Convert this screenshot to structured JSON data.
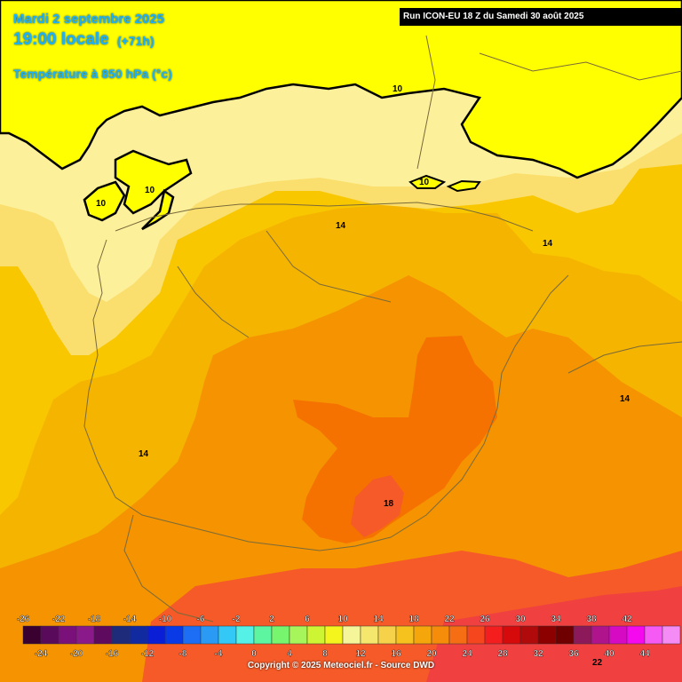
{
  "header": {
    "date": "Mardi 2 septembre 2025",
    "time": "19:00 locale",
    "lead": "(+71h)",
    "parameter": "Température à 850 hPa (°c)",
    "run": "Run ICON-EU 18 Z du Samedi 30 août 2025"
  },
  "footer": {
    "copyright": "Copyright © 2025 Meteociel.fr - Source DWD"
  },
  "contour_labels": [
    "10",
    "10",
    "10",
    "10",
    "14",
    "14",
    "14",
    "14",
    "18",
    "22"
  ],
  "legend": {
    "top_ticks": [
      "-26",
      "-22",
      "-18",
      "-14",
      "-10",
      "-6",
      "-2",
      "2",
      "6",
      "10",
      "14",
      "18",
      "22",
      "26",
      "30",
      "34",
      "38",
      "42"
    ],
    "bottom_ticks": [
      "-24",
      "-20",
      "-16",
      "-12",
      "-8",
      "-4",
      "0",
      "4",
      "8",
      "12",
      "16",
      "20",
      "24",
      "28",
      "32",
      "36",
      "40",
      "44"
    ],
    "colors": [
      "#3a0030",
      "#5a0a5a",
      "#7a107a",
      "#8a1a8a",
      "#5e0a5e",
      "#1e2a7a",
      "#122aa0",
      "#0a1ed6",
      "#0a3ae6",
      "#1e6ef5",
      "#2a9af5",
      "#33c8f5",
      "#55f0e6",
      "#5ef5a0",
      "#78f56e",
      "#a6f55a",
      "#cdf533",
      "#f5f51e",
      "#f5f59a",
      "#f5e66e",
      "#f5d24a",
      "#f5c21e",
      "#f5a60a",
      "#f58c0a",
      "#f56e14",
      "#f5461e",
      "#f51e1e",
      "#d60a0a",
      "#b00a0a",
      "#8c0000",
      "#6e0000",
      "#8c1a5a",
      "#b0148c",
      "#d60ac2",
      "#f50af0",
      "#f55af5",
      "#f58cf5"
    ]
  }
}
